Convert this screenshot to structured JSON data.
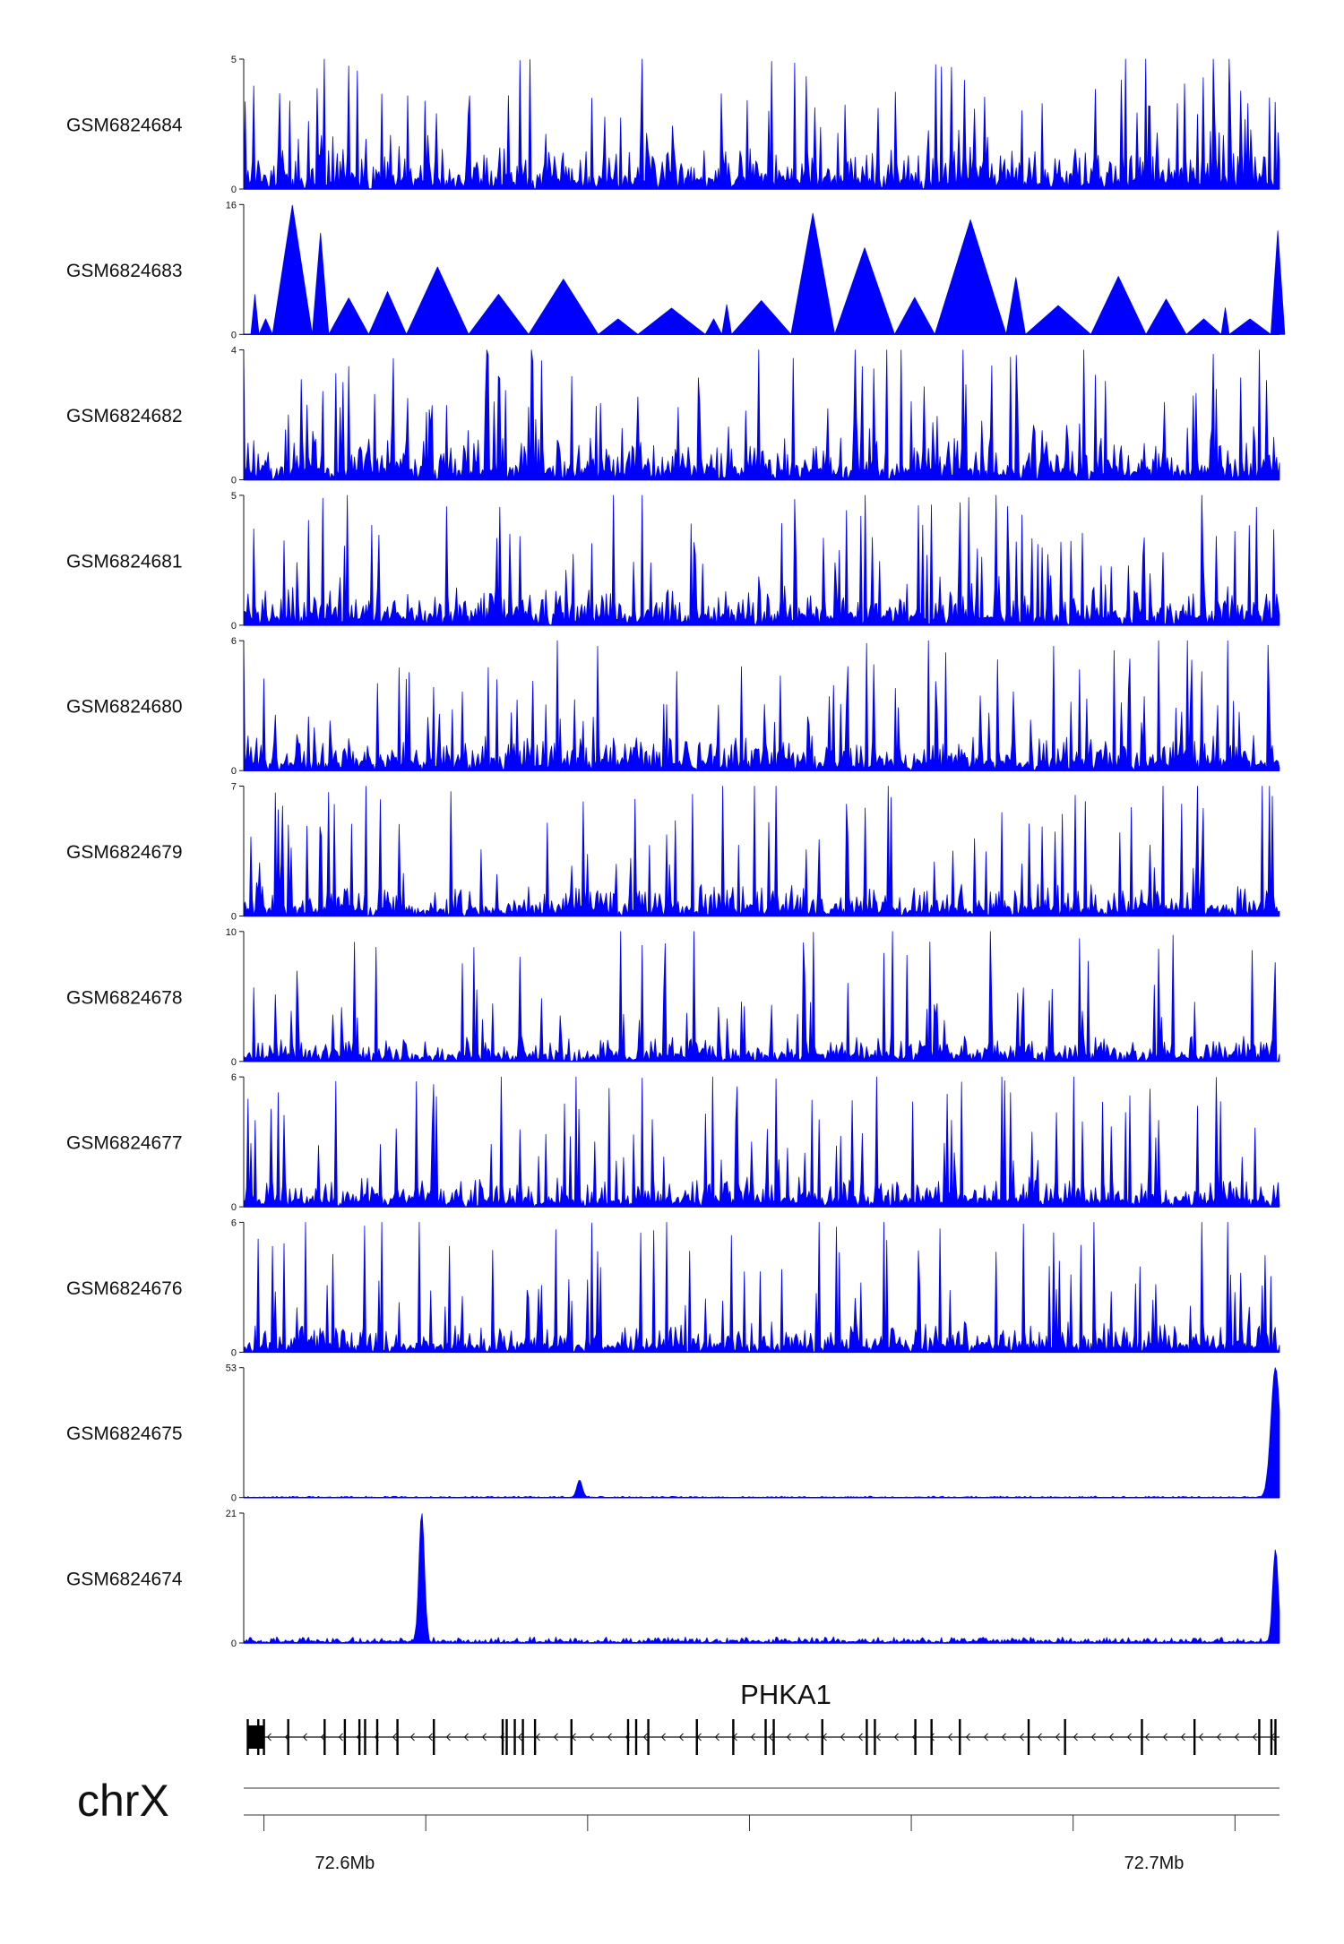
{
  "chart_data": {
    "type": "area",
    "chromosome": "chrX",
    "region": {
      "start": 72.5875,
      "end": 72.7155
    },
    "x_ticks": [
      72.59,
      72.61,
      72.63,
      72.65,
      72.67,
      72.69,
      72.71
    ],
    "x_tick_labels": [
      {
        "value": 72.6,
        "label": "72.6Mb"
      },
      {
        "value": 72.7,
        "label": "72.7Mb"
      }
    ],
    "color": "#0000ff",
    "tracks": [
      {
        "name": "GSM6824684",
        "ylim": [
          0,
          5
        ],
        "seed": 11,
        "baseline": 0.45,
        "noise": 1.3,
        "spike_rate": 0.1,
        "peak_max": 5
      },
      {
        "name": "GSM6824683",
        "ylim": [
          0,
          16
        ],
        "seed": 23,
        "sparse": true,
        "peak_max": 16
      },
      {
        "name": "GSM6824682",
        "ylim": [
          0,
          4
        ],
        "seed": 37,
        "baseline": 0.35,
        "noise": 1.1,
        "spike_rate": 0.12,
        "peak_max": 4
      },
      {
        "name": "GSM6824681",
        "ylim": [
          0,
          5
        ],
        "seed": 41,
        "baseline": 0.45,
        "noise": 1.2,
        "spike_rate": 0.1,
        "peak_max": 5
      },
      {
        "name": "GSM6824680",
        "ylim": [
          0,
          6
        ],
        "seed": 53,
        "baseline": 0.45,
        "noise": 1.3,
        "spike_rate": 0.1,
        "peak_max": 6
      },
      {
        "name": "GSM6824679",
        "ylim": [
          0,
          7
        ],
        "seed": 67,
        "baseline": 0.45,
        "noise": 1.4,
        "spike_rate": 0.1,
        "peak_max": 7
      },
      {
        "name": "GSM6824678",
        "ylim": [
          0,
          10
        ],
        "seed": 71,
        "baseline": 0.55,
        "noise": 1.6,
        "spike_rate": 0.09,
        "peak_max": 10
      },
      {
        "name": "GSM6824677",
        "ylim": [
          0,
          6
        ],
        "seed": 83,
        "baseline": 0.35,
        "noise": 1.1,
        "spike_rate": 0.11,
        "peak_max": 6
      },
      {
        "name": "GSM6824676",
        "ylim": [
          0,
          6
        ],
        "seed": 97,
        "baseline": 0.35,
        "noise": 1.1,
        "spike_rate": 0.11,
        "peak_max": 6
      },
      {
        "name": "GSM6824675",
        "ylim": [
          0,
          53
        ],
        "seed": 101,
        "baseline": 0.15,
        "noise": 0.5,
        "peaks": [
          {
            "x": 72.629,
            "height": 7
          },
          {
            "x": 72.715,
            "height": 53
          }
        ]
      },
      {
        "name": "GSM6824674",
        "ylim": [
          0,
          21
        ],
        "seed": 113,
        "baseline": 0.25,
        "noise": 0.8,
        "peaks": [
          {
            "x": 72.6095,
            "height": 21
          },
          {
            "x": 72.715,
            "height": 15
          }
        ]
      }
    ],
    "gene": {
      "name": "PHKA1",
      "strand": "-",
      "start": 72.588,
      "end": 72.7155,
      "exons": [
        72.588,
        72.5893,
        72.59,
        72.593,
        72.5975,
        72.6,
        72.6018,
        72.6025,
        72.604,
        72.6065,
        72.611,
        72.6195,
        72.62,
        72.621,
        72.622,
        72.6235,
        72.628,
        72.635,
        72.636,
        72.6375,
        72.6435,
        72.648,
        72.652,
        72.653,
        72.659,
        72.6645,
        72.6655,
        72.6705,
        72.6725,
        72.676,
        72.6845,
        72.689,
        72.6985,
        72.705,
        72.713,
        72.7145,
        72.715
      ]
    }
  }
}
